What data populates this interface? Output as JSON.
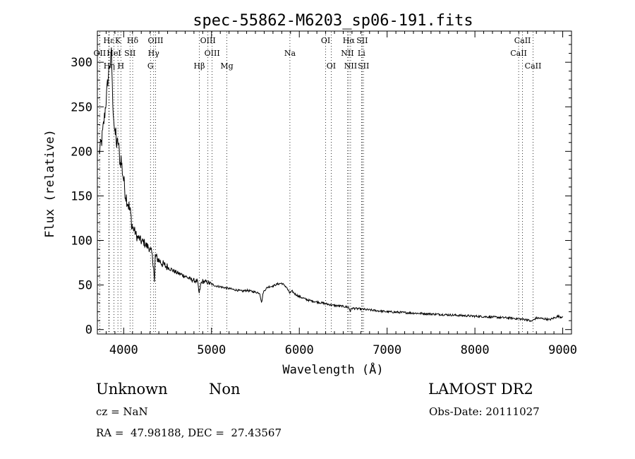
{
  "chart_data": {
    "type": "line",
    "title": "spec-55862-M6203_sp06-191.fits",
    "xlabel": "Wavelength (Å)",
    "ylabel": "Flux (relative)",
    "xlim": [
      3700,
      9100
    ],
    "ylim": [
      -5,
      335
    ],
    "xticks": [
      "4000",
      "5000",
      "6000",
      "7000",
      "8000",
      "9000"
    ],
    "yticks": [
      "0",
      "50",
      "100",
      "150",
      "200",
      "250",
      "300"
    ],
    "grid": false,
    "legend": "none",
    "line_color": "#000000",
    "lines_color": "#000000",
    "series": [
      {
        "x": [
          3720,
          3750,
          3780,
          3800,
          3820,
          3840,
          3850,
          3860,
          3870,
          3880,
          3890,
          3900,
          3910,
          3920,
          3935,
          3950,
          3960,
          3970,
          3985,
          4000,
          4020,
          4040,
          4060,
          4080,
          4100,
          4120,
          4150,
          4180,
          4200,
          4230,
          4260,
          4290,
          4320,
          4340,
          4350,
          4360,
          4380,
          4420,
          4460,
          4500,
          4550,
          4600,
          4650,
          4700,
          4750,
          4800,
          4840,
          4860,
          4880,
          4900,
          4950,
          5000,
          5050,
          5100,
          5150,
          5200,
          5250,
          5300,
          5350,
          5400,
          5450,
          5500,
          5550,
          5570,
          5590,
          5620,
          5650,
          5700,
          5750,
          5800,
          5850,
          5890,
          5920,
          5950,
          6000,
          6050,
          6100,
          6150,
          6200,
          6250,
          6300,
          6350,
          6400,
          6500,
          6560,
          6580,
          6600,
          6700,
          6800,
          6900,
          7000,
          7200,
          7400,
          7600,
          7800,
          8000,
          8200,
          8400,
          8500,
          8600,
          8640,
          8700,
          8800,
          8850,
          8900,
          8950,
          8980,
          9000
        ],
        "y": [
          198,
          212,
          238,
          258,
          280,
          300,
          292,
          318,
          270,
          248,
          232,
          216,
          222,
          205,
          212,
          198,
          186,
          192,
          178,
          168,
          152,
          145,
          138,
          128,
          114,
          112,
          104,
          102,
          99,
          98,
          94,
          92,
          85,
          72,
          52,
          83,
          80,
          76,
          72,
          70,
          67,
          64,
          62,
          60,
          57,
          55,
          54,
          40,
          52,
          54,
          53,
          51,
          49,
          48,
          47,
          46,
          45,
          44,
          43,
          44,
          43,
          42,
          41,
          30,
          42,
          46,
          48,
          49,
          51,
          52,
          48,
          41,
          43,
          40,
          37,
          35,
          33,
          32,
          31,
          30,
          29,
          28,
          27,
          26,
          25,
          21,
          24,
          23,
          22,
          21,
          20,
          19,
          18,
          17,
          16,
          15,
          14,
          13,
          12,
          11,
          9,
          13,
          12,
          11,
          13,
          15,
          14,
          15
        ]
      }
    ],
    "spectral_lines": [
      {
        "label": "Hε",
        "x": 3830,
        "row": 0
      },
      {
        "label": "K",
        "x": 3934,
        "row": 0
      },
      {
        "label": "Hδ",
        "x": 4102,
        "row": 0
      },
      {
        "label": "OIII",
        "x": 4363,
        "row": 0
      },
      {
        "label": "OIII",
        "x": 4959,
        "row": 0
      },
      {
        "label": "OI",
        "x": 6300,
        "row": 0
      },
      {
        "label": "Hα",
        "x": 6563,
        "row": 0
      },
      {
        "label": "SII",
        "x": 6716,
        "row": 0
      },
      {
        "label": "CaII",
        "x": 8542,
        "row": 0
      },
      {
        "label": "OII",
        "x": 3727,
        "row": 1
      },
      {
        "label": "HeI",
        "x": 3889,
        "row": 1
      },
      {
        "label": "SII",
        "x": 4072,
        "row": 1
      },
      {
        "label": "Hγ",
        "x": 4341,
        "row": 1
      },
      {
        "label": "OIII",
        "x": 5007,
        "row": 1
      },
      {
        "label": "Na",
        "x": 5893,
        "row": 1
      },
      {
        "label": "NII",
        "x": 6548,
        "row": 1
      },
      {
        "label": "Li",
        "x": 6708,
        "row": 1
      },
      {
        "label": "CaII",
        "x": 8498,
        "row": 1
      },
      {
        "label": "Hη",
        "x": 3835,
        "row": 2
      },
      {
        "label": "H",
        "x": 3968,
        "row": 2
      },
      {
        "label": "G",
        "x": 4305,
        "row": 2
      },
      {
        "label": "Hβ",
        "x": 4861,
        "row": 2
      },
      {
        "label": "Mg",
        "x": 5175,
        "row": 2
      },
      {
        "label": "OI",
        "x": 6363,
        "row": 2
      },
      {
        "label": "NII",
        "x": 6584,
        "row": 2
      },
      {
        "label": "SII",
        "x": 6731,
        "row": 2
      },
      {
        "label": "CaII",
        "x": 8662,
        "row": 2
      }
    ]
  },
  "info": {
    "object_class": "Unknown",
    "subclass": "Non",
    "survey": "LAMOST DR2",
    "cz": "cz = NaN",
    "obs_date": "Obs-Date: 20111027",
    "coords": "RA =  47.98188, DEC =  27.43567"
  }
}
